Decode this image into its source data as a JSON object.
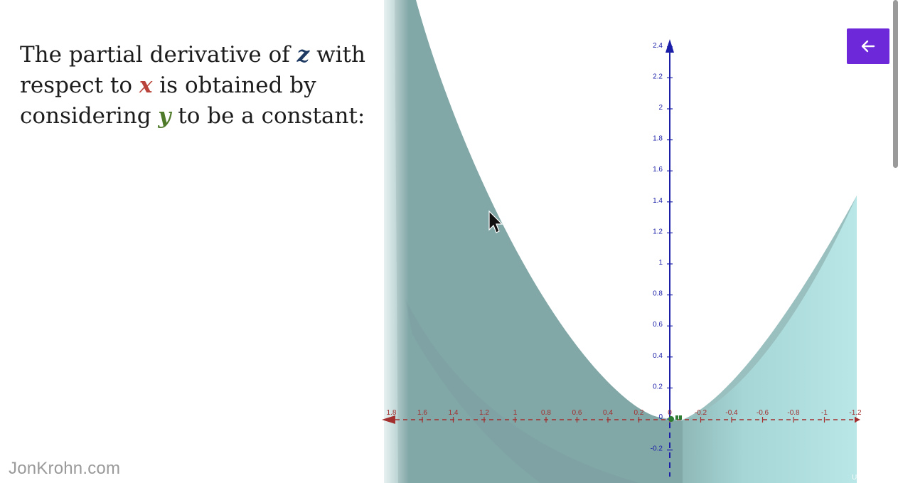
{
  "slide": {
    "line1_pre": "The partial derivative of ",
    "var_z": "z",
    "line1_post": " with",
    "line2_pre": "respect to ",
    "var_x": "x",
    "line2_post": " is obtained by",
    "line3_pre": "considering ",
    "var_y": "y",
    "line3_post": " to be a constant:"
  },
  "watermark": "JonKrohn.com",
  "graph": {
    "y_axis_ticks": [
      "2.4",
      "2.2",
      "2",
      "1.8",
      "1.6",
      "1.4",
      "1.2",
      "1",
      "0.8",
      "0.6",
      "0.4",
      "0.2",
      "0",
      "-0.2"
    ],
    "x_axis_ticks": [
      "1.8",
      "1.6",
      "1.4",
      "1.2",
      "1",
      "0.8",
      "0.6",
      "0.4",
      "0.2",
      "0",
      "-0.2",
      "-0.4",
      "-0.6",
      "-0.8",
      "-1",
      "-1.2"
    ],
    "colors": {
      "surface_dark": "#82a7a7",
      "surface_light": "#b7e4e4",
      "y_axis": "#1b1fa8",
      "x_axis": "#a32f2f",
      "point": "#2e7d32"
    }
  },
  "controls": {
    "back_icon": "arrow-left-icon",
    "button_color": "#6d28d9"
  },
  "udemy_mark": "Udemy"
}
